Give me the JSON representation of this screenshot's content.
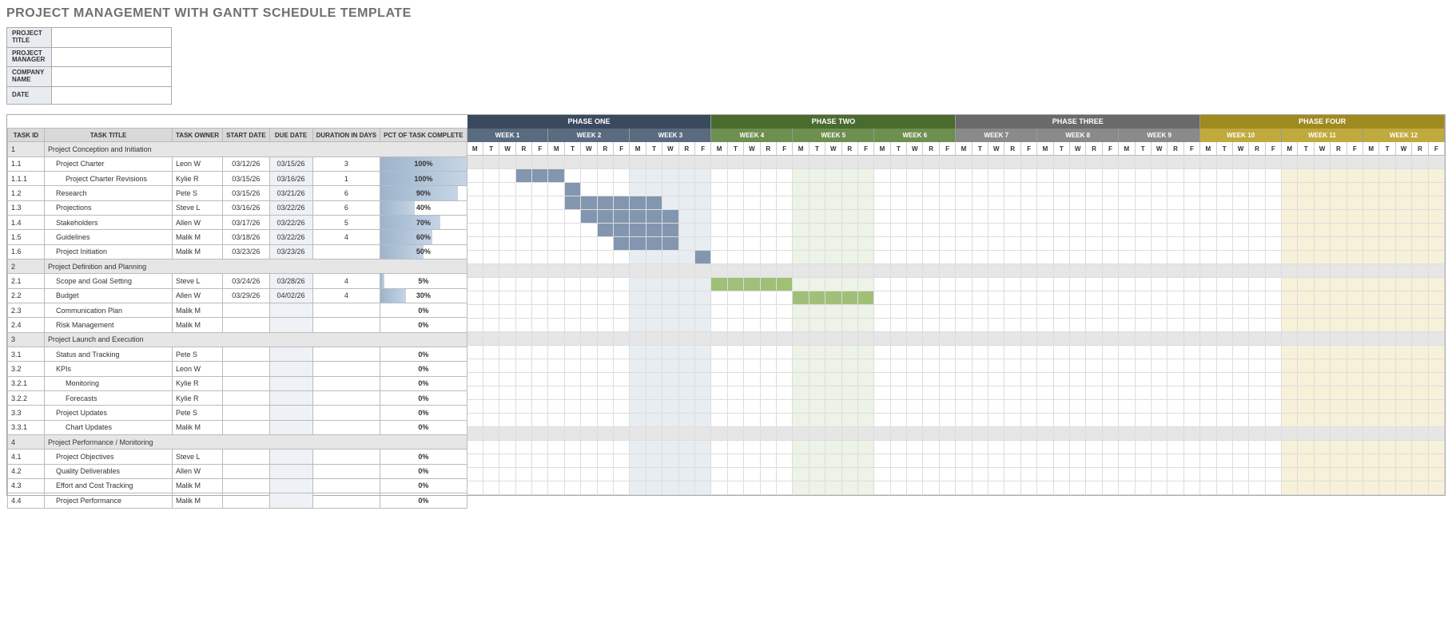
{
  "title": "PROJECT MANAGEMENT WITH GANTT SCHEDULE TEMPLATE",
  "meta_labels": {
    "project_title": "PROJECT TITLE",
    "project_manager": "PROJECT MANAGER",
    "company_name": "COMPANY NAME",
    "date": "DATE"
  },
  "meta_values": {
    "project_title": "",
    "project_manager": "",
    "company_name": "",
    "date": ""
  },
  "columns": {
    "id": "TASK ID",
    "title": "TASK TITLE",
    "owner": "TASK OWNER",
    "start": "START DATE",
    "due": "DUE DATE",
    "duration": "DURATION IN DAYS",
    "pct": "PCT OF TASK COMPLETE"
  },
  "day_labels": [
    "M",
    "T",
    "W",
    "R",
    "F"
  ],
  "phases": [
    {
      "name": "PHASE ONE",
      "weeks": [
        "WEEK 1",
        "WEEK 2",
        "WEEK 3"
      ],
      "header_bg": "#3a4a5e",
      "week_bg": "#5a6b80",
      "tint": "#e8edf2",
      "bar": "#8296af"
    },
    {
      "name": "PHASE TWO",
      "weeks": [
        "WEEK 4",
        "WEEK 5",
        "WEEK 6"
      ],
      "header_bg": "#4a6b2e",
      "week_bg": "#6d8f4f",
      "tint": "#edf3e6",
      "bar": "#9fc076"
    },
    {
      "name": "PHASE THREE",
      "weeks": [
        "WEEK 7",
        "WEEK 8",
        "WEEK 9"
      ],
      "header_bg": "#6a6a6a",
      "week_bg": "#8a8a8a",
      "tint": "#f0f0f0",
      "bar": "#aaaaaa"
    },
    {
      "name": "PHASE FOUR",
      "weeks": [
        "WEEK 10",
        "WEEK 11",
        "WEEK 12"
      ],
      "header_bg": "#9f8a1f",
      "week_bg": "#c0aa3e",
      "tint": "#f7f1d9",
      "bar": "#d6c46a"
    }
  ],
  "tint_columns": {
    "0": [
      10,
      11,
      12,
      13,
      14
    ],
    "1": [
      5,
      6,
      7,
      8,
      9
    ],
    "3": [
      5,
      6,
      7,
      8,
      9,
      10,
      11,
      12,
      13,
      14
    ]
  },
  "tasks": [
    {
      "id": "1",
      "title": "Project Conception and Initiation",
      "section": true
    },
    {
      "id": "1.1",
      "title": "Project Charter",
      "owner": "Leon W",
      "start": "03/12/26",
      "due": "03/15/26",
      "dur": "3",
      "pct": 100,
      "indent": 1,
      "bar_phase": 0,
      "bar_start": 3,
      "bar_len": 3
    },
    {
      "id": "1.1.1",
      "title": "Project Charter Revisions",
      "owner": "Kylie R",
      "start": "03/15/26",
      "due": "03/16/26",
      "dur": "1",
      "pct": 100,
      "indent": 2,
      "bar_phase": 0,
      "bar_start": 6,
      "bar_len": 1
    },
    {
      "id": "1.2",
      "title": "Research",
      "owner": "Pete S",
      "start": "03/15/26",
      "due": "03/21/26",
      "dur": "6",
      "pct": 90,
      "indent": 1,
      "bar_phase": 0,
      "bar_start": 6,
      "bar_len": 6
    },
    {
      "id": "1.3",
      "title": "Projections",
      "owner": "Steve L",
      "start": "03/16/26",
      "due": "03/22/26",
      "dur": "6",
      "pct": 40,
      "indent": 1,
      "bar_phase": 0,
      "bar_start": 7,
      "bar_len": 6
    },
    {
      "id": "1.4",
      "title": "Stakeholders",
      "owner": "Allen W",
      "start": "03/17/26",
      "due": "03/22/26",
      "dur": "5",
      "pct": 70,
      "indent": 1,
      "bar_phase": 0,
      "bar_start": 8,
      "bar_len": 5
    },
    {
      "id": "1.5",
      "title": "Guidelines",
      "owner": "Malik M",
      "start": "03/18/26",
      "due": "03/22/26",
      "dur": "4",
      "pct": 60,
      "indent": 1,
      "bar_phase": 0,
      "bar_start": 9,
      "bar_len": 4
    },
    {
      "id": "1.6",
      "title": "Project Initiation",
      "owner": "Malik M",
      "start": "03/23/26",
      "due": "03/23/26",
      "dur": "",
      "pct": 50,
      "indent": 1,
      "bar_phase": 0,
      "bar_start": 14,
      "bar_len": 1
    },
    {
      "id": "2",
      "title": "Project Definition and Planning",
      "section": true
    },
    {
      "id": "2.1",
      "title": "Scope and Goal Setting",
      "owner": "Steve L",
      "start": "03/24/26",
      "due": "03/28/26",
      "dur": "4",
      "pct": 5,
      "indent": 1,
      "bar_phase": 1,
      "bar_start": 0,
      "bar_len": 5
    },
    {
      "id": "2.2",
      "title": "Budget",
      "owner": "Allen W",
      "start": "03/29/26",
      "due": "04/02/26",
      "dur": "4",
      "pct": 30,
      "indent": 1,
      "bar_phase": 1,
      "bar_start": 5,
      "bar_len": 5
    },
    {
      "id": "2.3",
      "title": "Communication Plan",
      "owner": "Malik M",
      "start": "",
      "due": "",
      "dur": "",
      "pct": 0,
      "indent": 1
    },
    {
      "id": "2.4",
      "title": "Risk Management",
      "owner": "Malik M",
      "start": "",
      "due": "",
      "dur": "",
      "pct": 0,
      "indent": 1
    },
    {
      "id": "3",
      "title": "Project Launch and Execution",
      "section": true
    },
    {
      "id": "3.1",
      "title": "Status and Tracking",
      "owner": "Pete S",
      "start": "",
      "due": "",
      "dur": "",
      "pct": 0,
      "indent": 1
    },
    {
      "id": "3.2",
      "title": "KPIs",
      "owner": "Leon W",
      "start": "",
      "due": "",
      "dur": "",
      "pct": 0,
      "indent": 1
    },
    {
      "id": "3.2.1",
      "title": "Monitoring",
      "owner": "Kylie R",
      "start": "",
      "due": "",
      "dur": "",
      "pct": 0,
      "indent": 2
    },
    {
      "id": "3.2.2",
      "title": "Forecasts",
      "owner": "Kylie R",
      "start": "",
      "due": "",
      "dur": "",
      "pct": 0,
      "indent": 2
    },
    {
      "id": "3.3",
      "title": "Project Updates",
      "owner": "Pete S",
      "start": "",
      "due": "",
      "dur": "",
      "pct": 0,
      "indent": 1
    },
    {
      "id": "3.3.1",
      "title": "Chart Updates",
      "owner": "Malik M",
      "start": "",
      "due": "",
      "dur": "",
      "pct": 0,
      "indent": 2
    },
    {
      "id": "4",
      "title": "Project Performance / Monitoring",
      "section": true
    },
    {
      "id": "4.1",
      "title": "Project Objectives",
      "owner": "Steve L",
      "start": "",
      "due": "",
      "dur": "",
      "pct": 0,
      "indent": 1
    },
    {
      "id": "4.2",
      "title": "Quality Deliverables",
      "owner": "Allen W",
      "start": "",
      "due": "",
      "dur": "",
      "pct": 0,
      "indent": 1
    },
    {
      "id": "4.3",
      "title": "Effort and Cost Tracking",
      "owner": "Malik M",
      "start": "",
      "due": "",
      "dur": "",
      "pct": 0,
      "indent": 1
    },
    {
      "id": "4.4",
      "title": "Project Performance",
      "owner": "Malik M",
      "start": "",
      "due": "",
      "dur": "",
      "pct": 0,
      "indent": 1
    }
  ]
}
